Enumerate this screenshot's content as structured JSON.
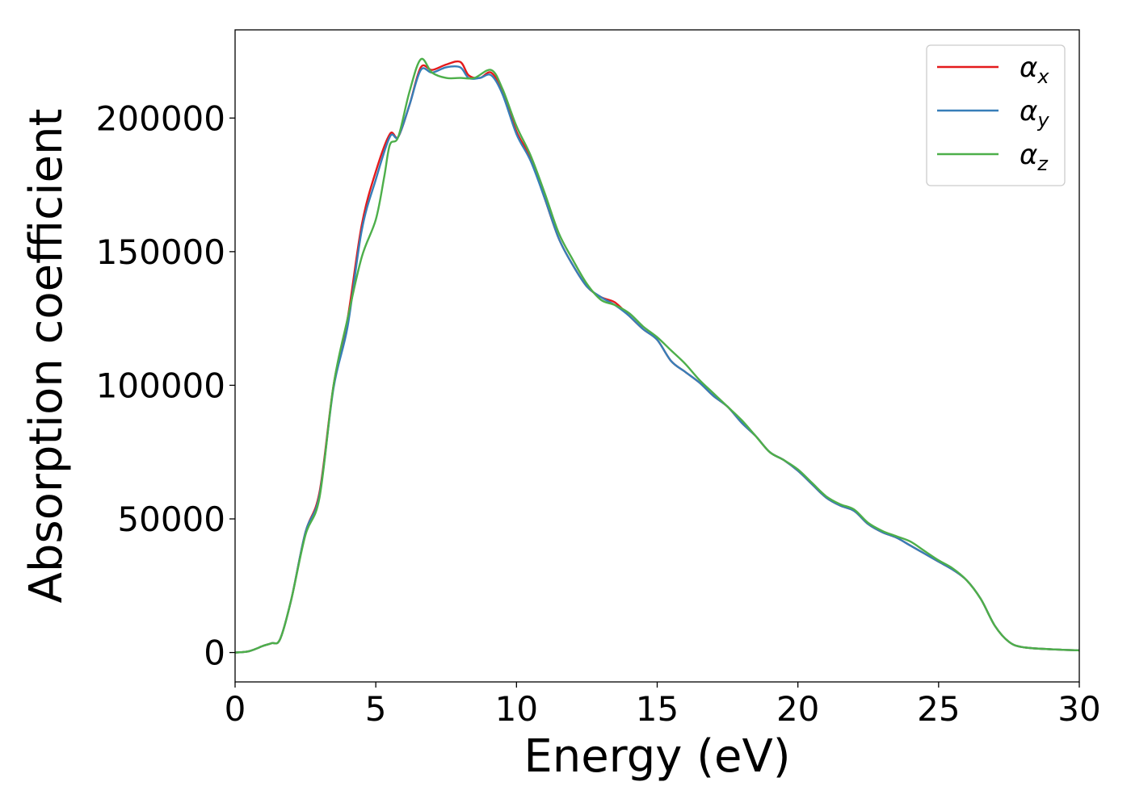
{
  "chart_data": {
    "type": "line",
    "title": "",
    "xlabel": "Energy (eV)",
    "ylabel": "Absorption coefficient",
    "xlim": [
      0,
      30
    ],
    "ylim": [
      -11000,
      233000
    ],
    "xticks": [
      0,
      5,
      10,
      15,
      20,
      25,
      30
    ],
    "yticks": [
      0,
      50000,
      100000,
      150000,
      200000
    ],
    "grid": false,
    "legend_position": "top-right",
    "series": [
      {
        "name": "α_x",
        "name_base": "α",
        "name_sub": "x",
        "color": "#e41a1c",
        "x": [
          0,
          0.5,
          1.0,
          1.3,
          1.6,
          2.0,
          2.5,
          3.0,
          3.5,
          4.0,
          4.5,
          5.0,
          5.5,
          5.8,
          6.2,
          6.6,
          7.0,
          7.5,
          8.0,
          8.3,
          8.7,
          9.1,
          9.5,
          10.0,
          10.5,
          11.0,
          11.5,
          12.0,
          12.5,
          13.0,
          13.5,
          14.0,
          14.5,
          15.0,
          15.5,
          16.0,
          16.5,
          17.0,
          17.5,
          18.0,
          18.5,
          19.0,
          19.5,
          20.0,
          20.5,
          21.0,
          21.5,
          22.0,
          22.5,
          23.0,
          23.5,
          24.0,
          24.5,
          25.0,
          25.5,
          26.0,
          26.5,
          27.0,
          27.5,
          28.0,
          29.0,
          30.0
        ],
        "y": [
          0,
          500,
          2500,
          3500,
          5000,
          20000,
          45000,
          60000,
          100000,
          125000,
          160000,
          180000,
          194000,
          193000,
          205000,
          219000,
          218000,
          220000,
          221000,
          216000,
          215000,
          217000,
          210000,
          195000,
          185000,
          170000,
          155000,
          145000,
          137000,
          133000,
          131000,
          126000,
          121000,
          117000,
          109000,
          105000,
          101000,
          96000,
          92000,
          86000,
          81000,
          75000,
          72000,
          68000,
          63000,
          58000,
          55000,
          53000,
          48000,
          45000,
          43000,
          40000,
          37000,
          34000,
          31000,
          27000,
          20000,
          10000,
          4000,
          2000,
          1200,
          800
        ]
      },
      {
        "name": "α_y",
        "name_base": "α",
        "name_sub": "y",
        "color": "#377eb8",
        "x": [
          0,
          0.5,
          1.0,
          1.3,
          1.6,
          2.0,
          2.5,
          3.0,
          3.5,
          4.0,
          4.5,
          5.0,
          5.5,
          5.8,
          6.2,
          6.6,
          7.0,
          7.5,
          8.0,
          8.3,
          8.7,
          9.1,
          9.5,
          10.0,
          10.5,
          11.0,
          11.5,
          12.0,
          12.5,
          13.0,
          13.5,
          14.0,
          14.5,
          15.0,
          15.5,
          16.0,
          16.5,
          17.0,
          17.5,
          18.0,
          18.5,
          19.0,
          19.5,
          20.0,
          20.5,
          21.0,
          21.5,
          22.0,
          22.5,
          23.0,
          23.5,
          24.0,
          24.5,
          25.0,
          25.5,
          26.0,
          26.5,
          27.0,
          27.5,
          28.0,
          29.0,
          30.0
        ],
        "y": [
          0,
          500,
          2500,
          3500,
          5000,
          20000,
          45000,
          59000,
          99000,
          122000,
          158000,
          177000,
          193000,
          193000,
          205000,
          218000,
          217000,
          219000,
          219000,
          215000,
          215000,
          216000,
          209000,
          194000,
          184000,
          170000,
          155000,
          145000,
          137000,
          133000,
          130000,
          126000,
          121000,
          117000,
          109000,
          105000,
          101000,
          96000,
          92000,
          86000,
          81000,
          75000,
          72000,
          68000,
          63000,
          58000,
          55000,
          53000,
          48000,
          45000,
          43000,
          40000,
          37000,
          34000,
          31000,
          27000,
          20000,
          10000,
          4000,
          2000,
          1200,
          800
        ]
      },
      {
        "name": "α_z",
        "name_base": "α",
        "name_sub": "z",
        "color": "#4daf4a",
        "x": [
          0,
          0.5,
          1.0,
          1.3,
          1.6,
          2.0,
          2.5,
          3.0,
          3.5,
          4.0,
          4.5,
          5.0,
          5.3,
          5.5,
          5.8,
          6.2,
          6.6,
          7.0,
          7.5,
          8.0,
          8.5,
          9.1,
          9.5,
          10.0,
          10.5,
          11.0,
          11.5,
          12.0,
          12.5,
          13.0,
          13.5,
          14.0,
          14.5,
          15.0,
          15.5,
          16.0,
          16.5,
          17.0,
          17.5,
          18.0,
          18.5,
          19.0,
          19.5,
          20.0,
          20.5,
          21.0,
          21.5,
          22.0,
          22.5,
          23.0,
          23.5,
          24.0,
          24.5,
          25.0,
          25.5,
          26.0,
          26.5,
          27.0,
          27.5,
          28.0,
          29.0,
          30.0
        ],
        "y": [
          0,
          500,
          2500,
          3500,
          5000,
          20000,
          44000,
          58000,
          100000,
          125000,
          148000,
          162000,
          178000,
          190000,
          193000,
          210000,
          222000,
          217000,
          215000,
          215000,
          215000,
          218000,
          211000,
          197000,
          186000,
          172000,
          157000,
          147000,
          138000,
          132000,
          130000,
          127000,
          122000,
          118000,
          113000,
          108000,
          102000,
          97000,
          92000,
          87000,
          81000,
          75000,
          72000,
          68500,
          63500,
          58500,
          55500,
          53500,
          48500,
          45500,
          43500,
          41500,
          38000,
          34500,
          31500,
          27000,
          20000,
          10000,
          4000,
          2000,
          1200,
          800
        ]
      }
    ]
  }
}
